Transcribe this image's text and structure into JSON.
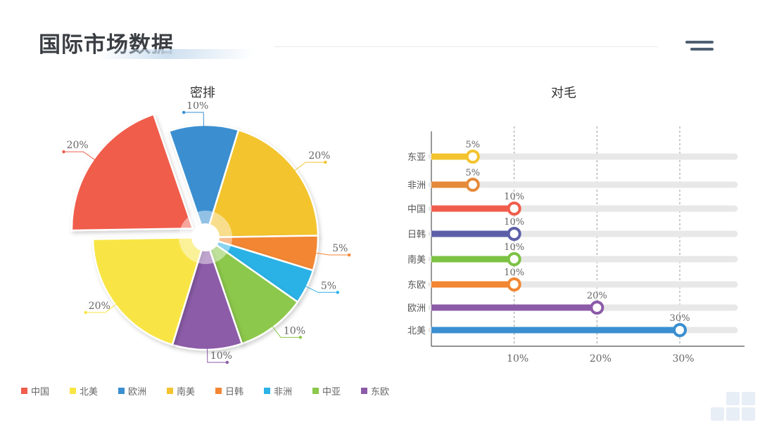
{
  "page": {
    "title": "国际市场数据"
  },
  "colors": {
    "中国": "#f05d4c",
    "北美": "#f8e544",
    "欧洲": "#3a8fd0",
    "南美": "#f3c42f",
    "日韩": "#f28633",
    "非洲": "#2bb2e6",
    "中亚": "#8cc84b",
    "东欧": "#8c5ba8"
  },
  "chart_data": [
    {
      "type": "pie",
      "title": "密排",
      "slices": [
        {
          "name": "欧洲",
          "value": 10,
          "label": "10%",
          "color": "#3a8fd0"
        },
        {
          "name": "南美",
          "value": 20,
          "label": "20%",
          "color": "#f3c42f"
        },
        {
          "name": "日韩",
          "value": 5,
          "label": "5%",
          "color": "#f28633"
        },
        {
          "name": "非洲",
          "value": 5,
          "label": "5%",
          "color": "#2bb2e6"
        },
        {
          "name": "中亚",
          "value": 10,
          "label": "10%",
          "color": "#8cc84b"
        },
        {
          "name": "东欧",
          "value": 10,
          "label": "10%",
          "color": "#8c5ba8"
        },
        {
          "name": "北美",
          "value": 20,
          "label": "20%",
          "color": "#f8e544"
        },
        {
          "name": "中国",
          "value": 20,
          "label": "20%",
          "color": "#f05d4c",
          "exploded": true
        }
      ],
      "legend": [
        "中国",
        "北美",
        "欧洲",
        "南美",
        "日韩",
        "非洲",
        "中亚",
        "东欧"
      ],
      "legend_position": "bottom"
    },
    {
      "type": "bar",
      "orientation": "horizontal",
      "title": "对毛",
      "categories": [
        "东亚",
        "非洲",
        "中国",
        "日韩",
        "南美",
        "东欧",
        "欧洲",
        "北美"
      ],
      "values": [
        5,
        5,
        10,
        10,
        10,
        10,
        20,
        30
      ],
      "labels": [
        "5%",
        "5%",
        "10%",
        "10%",
        "10%",
        "10%",
        "20%",
        "30%"
      ],
      "colors": [
        "#f3c42f",
        "#e58a3a",
        "#f05d4c",
        "#5c5fa8",
        "#7cc243",
        "#f28633",
        "#8c5ba8",
        "#3a8fd0"
      ],
      "xticks": [
        "10%",
        "20%",
        "30%"
      ],
      "xtick_values": [
        10,
        20,
        30
      ],
      "xlim": [
        0,
        37
      ],
      "grid": "vertical dashed"
    }
  ]
}
